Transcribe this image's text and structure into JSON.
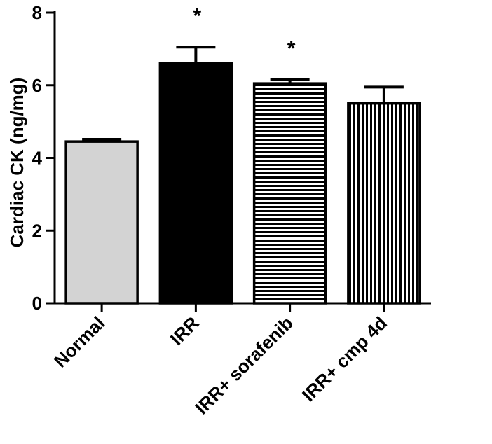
{
  "chart_data": {
    "type": "bar",
    "title": "",
    "xlabel": "",
    "ylabel": "Cardiac CK (ng/mg)",
    "ylim": [
      0,
      8
    ],
    "yticks": [
      "0",
      "2",
      "4",
      "6",
      "8"
    ],
    "categories": [
      "Normal",
      "IRR",
      "IRR+ sorafenib",
      "IRR+ cmp 4d"
    ],
    "values": [
      4.45,
      6.6,
      6.05,
      5.5
    ],
    "errors": [
      0.06,
      0.45,
      0.1,
      0.45
    ],
    "significance": [
      "",
      "*",
      "*",
      ""
    ],
    "fill_patterns": [
      "solid-light-gray",
      "solid-black",
      "horizontal-stripes",
      "vertical-stripes"
    ],
    "colors": {
      "light_fill": "#d3d3d3",
      "ink": "#000000",
      "background": "#ffffff"
    },
    "grid": false,
    "legend": "none"
  }
}
